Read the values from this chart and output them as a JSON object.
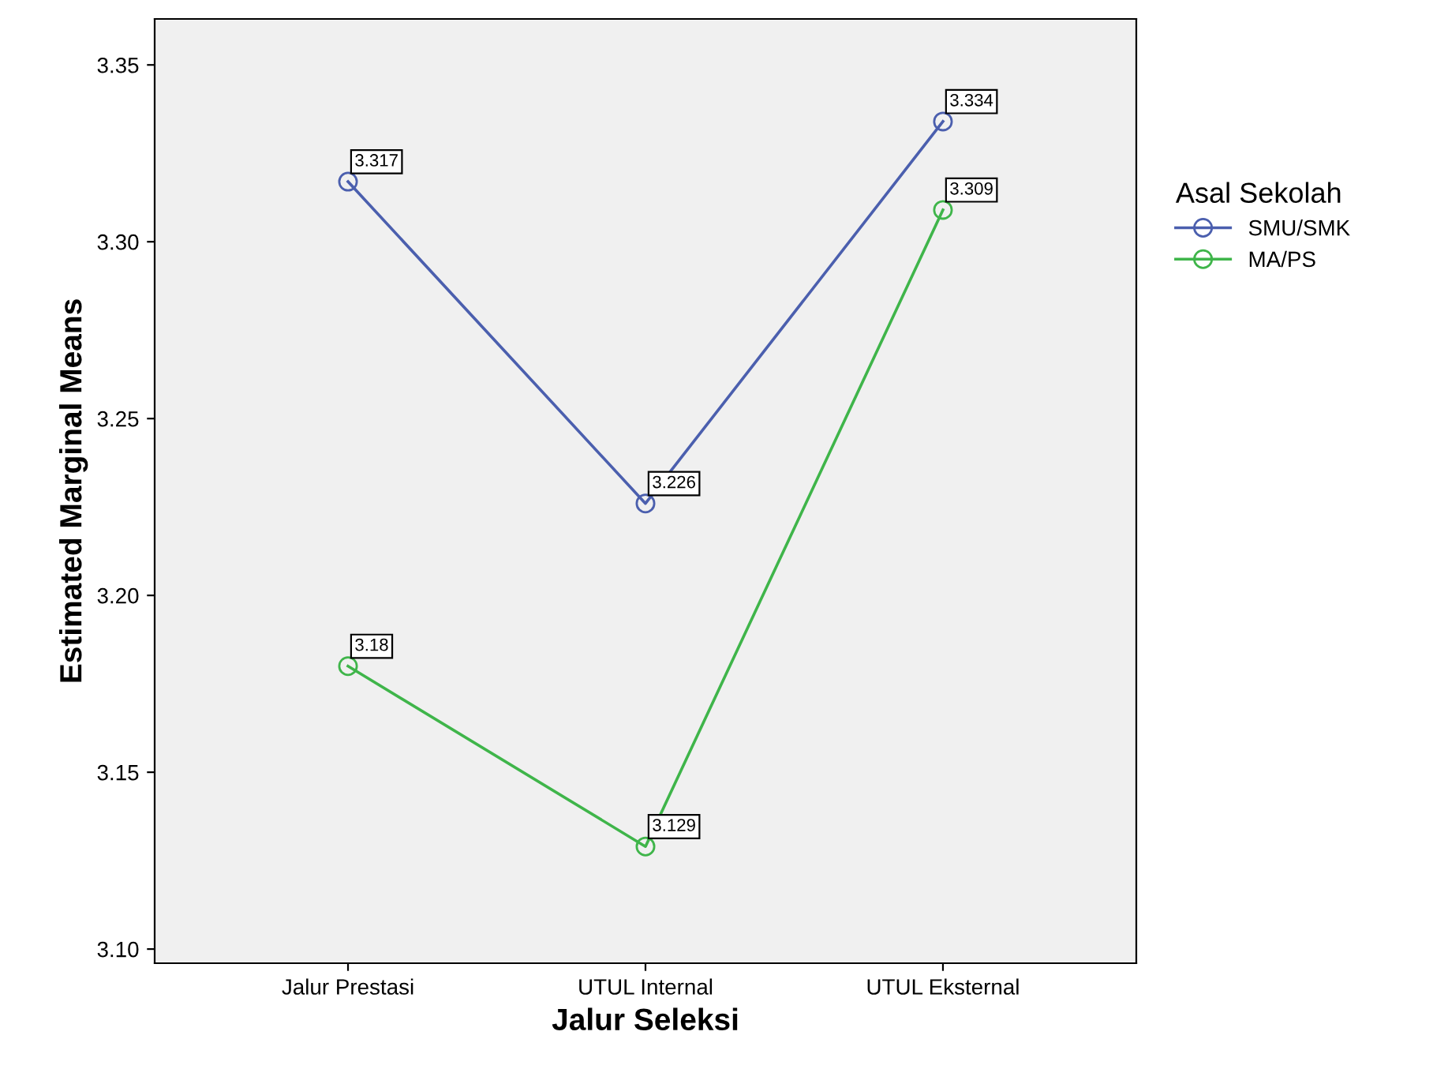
{
  "chart_data": {
    "type": "line",
    "xlabel": "Jalur Seleksi",
    "ylabel": "Estimated Marginal Means",
    "legend_title": "Asal Sekolah",
    "categories": [
      "Jalur Prestasi",
      "UTUL Internal",
      "UTUL Eksternal"
    ],
    "series": [
      {
        "name": "SMU/SMK",
        "color": "#4b5fae",
        "values": [
          3.317,
          3.226,
          3.334
        ]
      },
      {
        "name": "MA/PS",
        "color": "#3fb54a",
        "values": [
          3.18,
          3.129,
          3.309
        ]
      }
    ],
    "ylim": [
      3.096,
      3.363
    ],
    "yticks": [
      {
        "value": 3.1,
        "label": "3.10"
      },
      3.15,
      {
        "value": 3.2,
        "label": "3.20"
      },
      3.25,
      {
        "value": 3.3,
        "label": "3.30"
      },
      3.35
    ],
    "marker": "circle",
    "line_style": "solid",
    "data_labels": true,
    "legend": "right",
    "grid": false
  }
}
